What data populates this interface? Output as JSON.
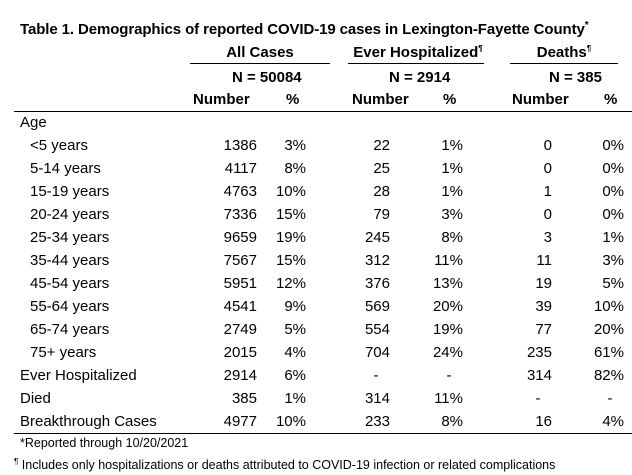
{
  "title": "Table 1. Demographics of reported COVID-19 cases in Lexington-Fayette County",
  "title_mark": "*",
  "groups": {
    "all": {
      "label": "All Cases",
      "mark": "",
      "n": "N =  50084"
    },
    "hosp": {
      "label": "Ever Hospitalized",
      "mark": "¶",
      "n": "N =  2914"
    },
    "deaths": {
      "label": "Deaths",
      "mark": "¶",
      "n": "N =  385"
    }
  },
  "col_headers": {
    "number": "Number",
    "percent": "%"
  },
  "section_label": "Age",
  "rows": [
    {
      "label": "<5 years",
      "a_n": "1386",
      "a_p": "3%",
      "h_n": "22",
      "h_p": "1%",
      "d_n": "0",
      "d_p": "0%"
    },
    {
      "label": "5-14 years",
      "a_n": "4117",
      "a_p": "8%",
      "h_n": "25",
      "h_p": "1%",
      "d_n": "0",
      "d_p": "0%"
    },
    {
      "label": "15-19 years",
      "a_n": "4763",
      "a_p": "10%",
      "h_n": "28",
      "h_p": "1%",
      "d_n": "1",
      "d_p": "0%"
    },
    {
      "label": "20-24 years",
      "a_n": "7336",
      "a_p": "15%",
      "h_n": "79",
      "h_p": "3%",
      "d_n": "0",
      "d_p": "0%"
    },
    {
      "label": "25-34 years",
      "a_n": "9659",
      "a_p": "19%",
      "h_n": "245",
      "h_p": "8%",
      "d_n": "3",
      "d_p": "1%"
    },
    {
      "label": "35-44 years",
      "a_n": "7567",
      "a_p": "15%",
      "h_n": "312",
      "h_p": "11%",
      "d_n": "11",
      "d_p": "3%"
    },
    {
      "label": "45-54 years",
      "a_n": "5951",
      "a_p": "12%",
      "h_n": "376",
      "h_p": "13%",
      "d_n": "19",
      "d_p": "5%"
    },
    {
      "label": "55-64 years",
      "a_n": "4541",
      "a_p": "9%",
      "h_n": "569",
      "h_p": "20%",
      "d_n": "39",
      "d_p": "10%"
    },
    {
      "label": "65-74 years",
      "a_n": "2749",
      "a_p": "5%",
      "h_n": "554",
      "h_p": "19%",
      "d_n": "77",
      "d_p": "20%"
    },
    {
      "label": "75+ years",
      "a_n": "2015",
      "a_p": "4%",
      "h_n": "704",
      "h_p": "24%",
      "d_n": "235",
      "d_p": "61%"
    },
    {
      "label": "Ever Hospitalized",
      "a_n": "2914",
      "a_p": "6%",
      "h_n": "-",
      "h_p": "-",
      "d_n": "314",
      "d_p": "82%"
    },
    {
      "label": "Died",
      "a_n": "385",
      "a_p": "1%",
      "h_n": "314",
      "h_p": "11%",
      "d_n": "-",
      "d_p": "-"
    },
    {
      "label": "Breakthrough Cases",
      "a_n": "4977",
      "a_p": "10%",
      "h_n": "233",
      "h_p": "8%",
      "d_n": "16",
      "d_p": "4%"
    }
  ],
  "footnotes": {
    "star": "*Reported through 10/20/2021",
    "pilcrow_mark": "¶",
    "pilcrow": " Includes only hospitalizations or deaths attributed to COVID-19 infection or related complications"
  }
}
